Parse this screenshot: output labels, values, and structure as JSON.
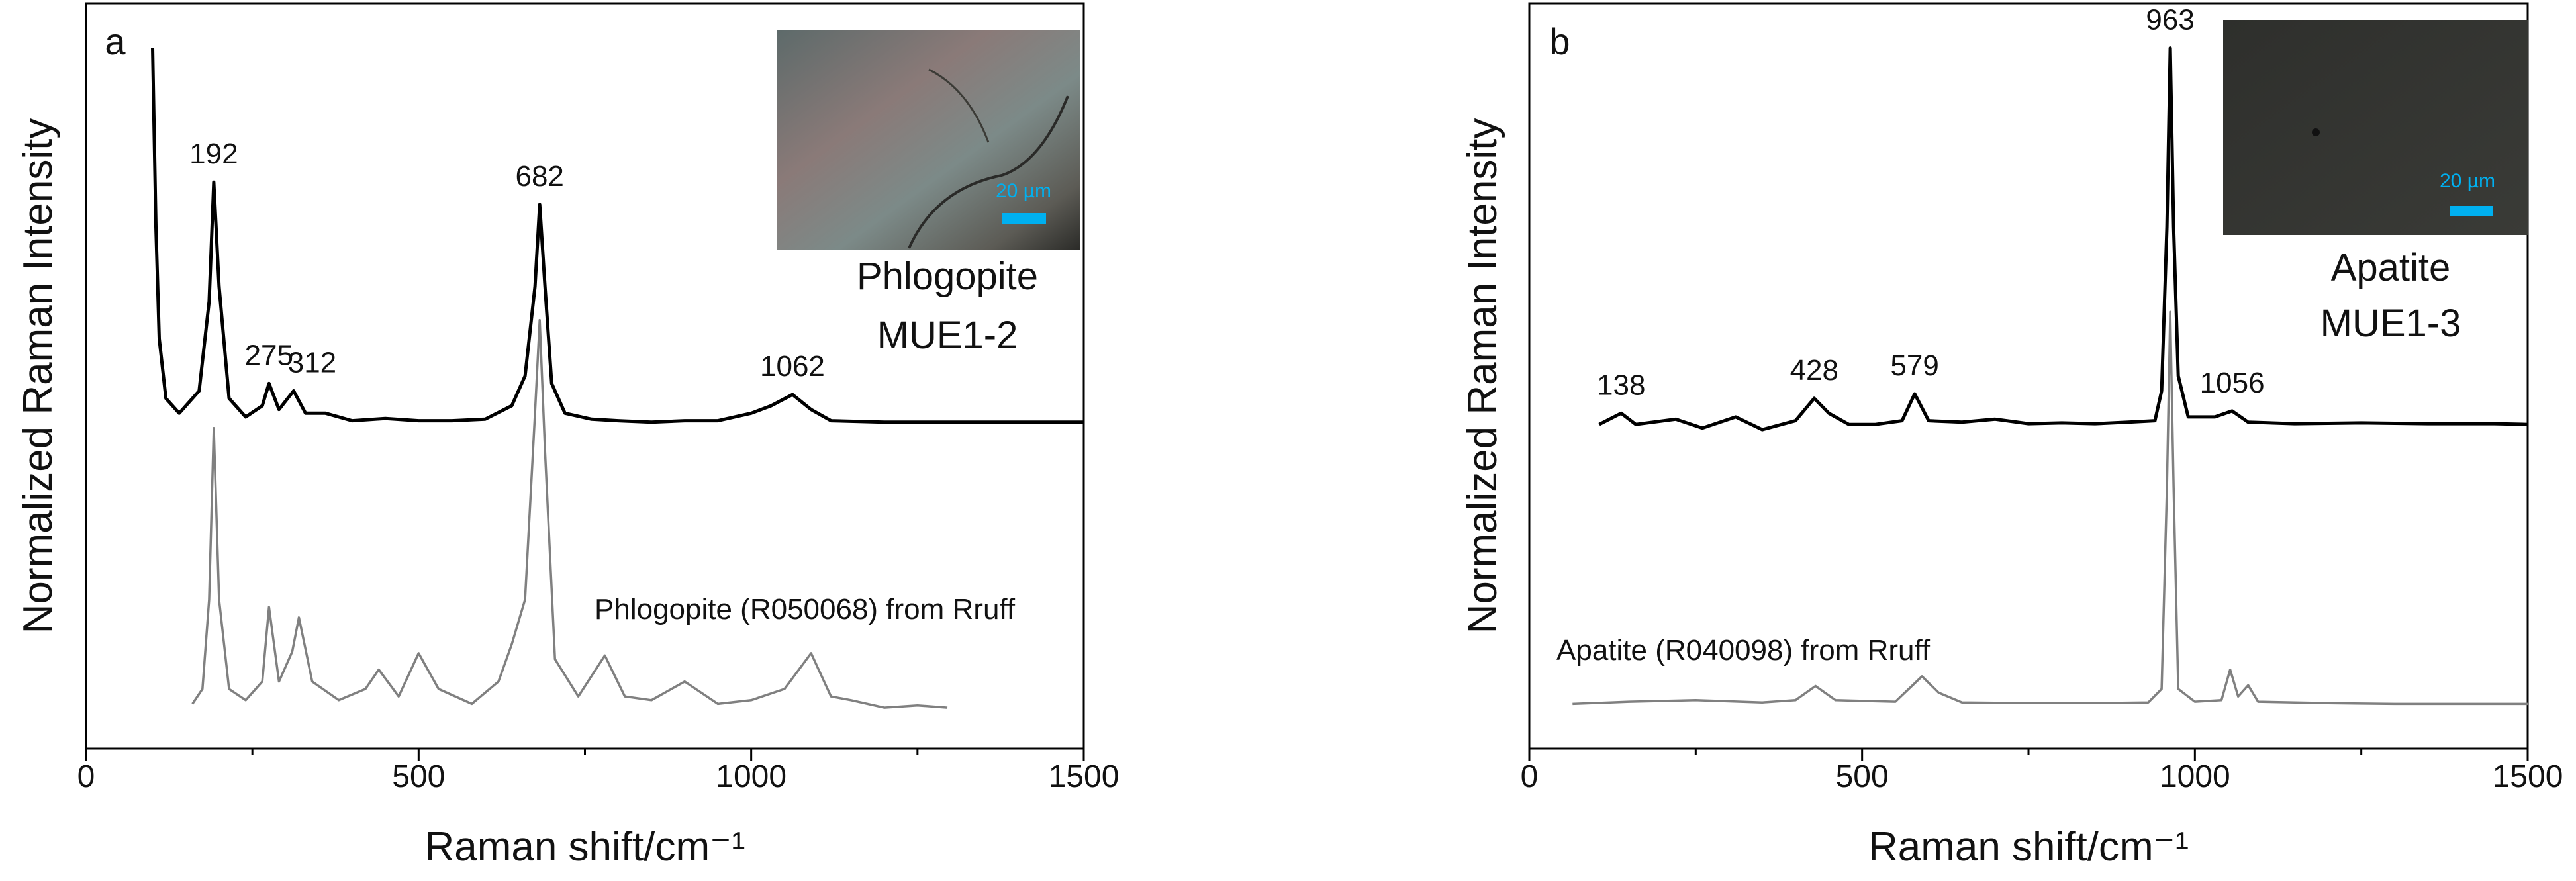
{
  "chart_data": [
    {
      "type": "line",
      "panel_label": "a",
      "xlabel": "Raman shift/cm⁻¹",
      "ylabel": "Normalized Raman Intensity",
      "xlim": [
        0,
        1500
      ],
      "ylim": [
        0,
        100
      ],
      "xticks": [
        0,
        500,
        1000,
        1500
      ],
      "xminorticks": [
        250,
        750,
        1250
      ],
      "sample_label": [
        "Phlogopite",
        "MUE1-2"
      ],
      "inset_scale": "20 µm",
      "peak_labels": [
        192,
        275,
        312,
        682,
        1062
      ],
      "series": [
        {
          "color": "#000000",
          "x": [
            100,
            105,
            110,
            120,
            140,
            170,
            185,
            192,
            200,
            215,
            240,
            265,
            275,
            290,
            312,
            330,
            360,
            400,
            450,
            500,
            550,
            600,
            640,
            660,
            675,
            682,
            690,
            700,
            720,
            760,
            800,
            850,
            900,
            950,
            1000,
            1030,
            1062,
            1090,
            1120,
            1200,
            1300,
            1400,
            1500
          ],
          "values": [
            94,
            70,
            55,
            47,
            45,
            48,
            60,
            76,
            62,
            47,
            44.5,
            46,
            49,
            45.5,
            48,
            45,
            45,
            44,
            44.3,
            44,
            44,
            44.2,
            46,
            50,
            62,
            73,
            62,
            49,
            45,
            44.2,
            44,
            43.8,
            44,
            44,
            45,
            46,
            47.5,
            45.5,
            44,
            43.8,
            43.8,
            43.8,
            43.8
          ]
        },
        {
          "name": "Phlogopite (R050068) from Rruff",
          "color": "#808080",
          "x": [
            160,
            175,
            185,
            192,
            200,
            215,
            240,
            265,
            275,
            290,
            310,
            320,
            340,
            380,
            420,
            440,
            470,
            500,
            530,
            580,
            620,
            640,
            660,
            675,
            682,
            690,
            705,
            740,
            780,
            810,
            850,
            900,
            950,
            1000,
            1050,
            1090,
            1120,
            1150,
            1200,
            1250,
            1295
          ],
          "values": [
            6,
            8,
            20,
            43,
            20,
            8,
            6.5,
            9,
            19,
            9,
            13,
            17.6,
            9,
            6.5,
            8,
            10.6,
            7,
            12.8,
            8,
            6,
            9,
            14,
            20,
            45,
            57.5,
            40,
            12,
            7,
            12.5,
            7,
            6.5,
            9,
            6,
            6.5,
            8,
            12.8,
            7,
            6.5,
            5.5,
            5.8,
            5.5
          ]
        }
      ]
    },
    {
      "type": "line",
      "panel_label": "b",
      "xlabel": "Raman shift/cm⁻¹",
      "ylabel": "Normalized Raman Intensity",
      "xlim": [
        0,
        1500
      ],
      "ylim": [
        0,
        100
      ],
      "xticks": [
        0,
        500,
        1000,
        1500
      ],
      "xminorticks": [
        250,
        750,
        1250
      ],
      "sample_label": [
        "Apatite",
        "MUE1-3"
      ],
      "inset_scale": "20 µm",
      "peak_labels": [
        138,
        428,
        579,
        963,
        1056
      ],
      "series": [
        {
          "color": "#000000",
          "x": [
            105,
            138,
            160,
            220,
            260,
            310,
            350,
            400,
            428,
            450,
            480,
            520,
            560,
            579,
            600,
            650,
            700,
            750,
            800,
            850,
            900,
            940,
            950,
            958,
            963,
            968,
            975,
            990,
            1030,
            1056,
            1080,
            1150,
            1250,
            1350,
            1450,
            1500
          ],
          "values": [
            43.5,
            45,
            43.5,
            44.2,
            43,
            44.5,
            42.8,
            44,
            47,
            45,
            43.5,
            43.5,
            44,
            47.6,
            44,
            43.8,
            44.2,
            43.6,
            43.7,
            43.6,
            43.8,
            44,
            48,
            70,
            94,
            70,
            50,
            44.5,
            44.5,
            45.3,
            43.8,
            43.6,
            43.7,
            43.6,
            43.6,
            43.5
          ]
        },
        {
          "name": "Apatite (R040098) from Rruff",
          "color": "#808080",
          "x": [
            65,
            150,
            250,
            350,
            400,
            430,
            460,
            550,
            590,
            615,
            650,
            750,
            850,
            930,
            950,
            958,
            963,
            968,
            975,
            1000,
            1040,
            1053,
            1065,
            1080,
            1095,
            1200,
            1300,
            1400,
            1500
          ],
          "values": [
            6,
            6.3,
            6.5,
            6.2,
            6.5,
            8.4,
            6.5,
            6.3,
            9.7,
            7.5,
            6.2,
            6.1,
            6.1,
            6.2,
            8,
            35,
            58.6,
            35,
            8,
            6.3,
            6.5,
            10.6,
            7,
            8.5,
            6.3,
            6.1,
            6,
            6,
            6
          ]
        }
      ]
    }
  ]
}
